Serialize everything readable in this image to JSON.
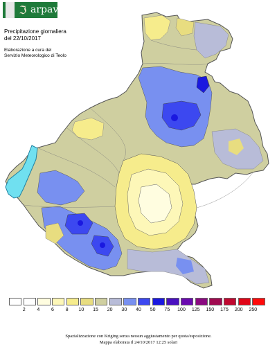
{
  "logo": {
    "glyph": "ℑ",
    "text": "arpav"
  },
  "title": {
    "line1": "Precipitazione giornaliera",
    "line2": "del 22/10/2017"
  },
  "subtitle": {
    "line1": "Elaborazione a cura del",
    "line2": "Servizio Meteorologico di Teolo"
  },
  "legend": {
    "colors": [
      "#ffffff",
      "#fffde0",
      "#fdf7b8",
      "#f6ec8c",
      "#e8dd80",
      "#cfcfa0",
      "#b8bcd8",
      "#7890f0",
      "#3c48f0",
      "#1a18e0",
      "#4a10c0",
      "#6a0ab0",
      "#8a0a80",
      "#a00a50",
      "#c00830",
      "#e00618",
      "#ff0a0a"
    ],
    "labels": [
      "2",
      "4",
      "6",
      "8",
      "10",
      "15",
      "20",
      "30",
      "40",
      "50",
      "75",
      "100",
      "125",
      "150",
      "175",
      "200",
      "250"
    ]
  },
  "footer": {
    "line1": "Spazializzazione con Kriging senza nessun aggiustamento per quota/esposizione.",
    "line2": "Mappa elaborata il 24/10/2017 12:25 solari"
  }
}
